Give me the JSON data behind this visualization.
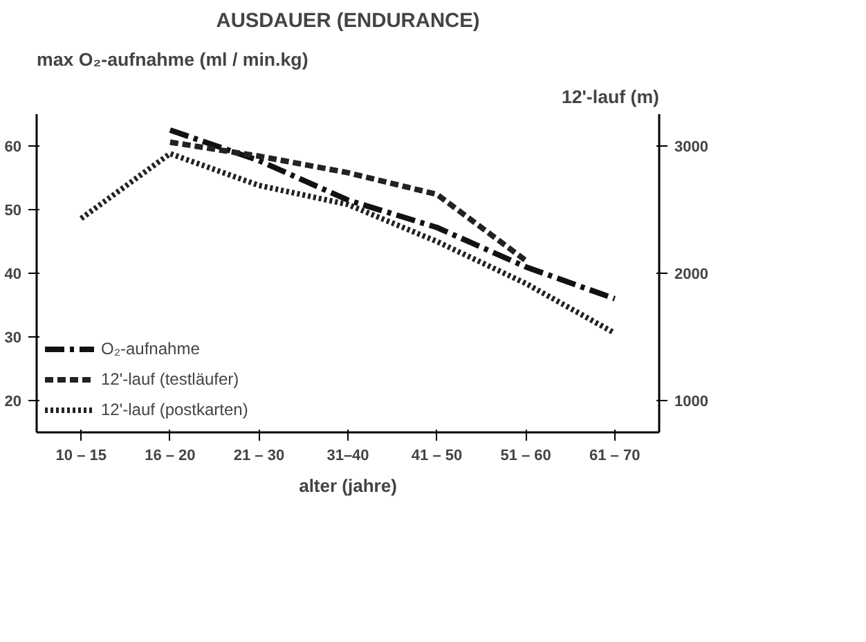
{
  "chart_data": {
    "type": "line",
    "title": "AUSDAUER (ENDURANCE)",
    "xlabel": "alter (jahre)",
    "ylabel": "max O₂-aufnahme (ml / min.kg)",
    "y2label": "12'-lauf (m)",
    "categories": [
      "10 – 15",
      "16 – 20",
      "21 – 30",
      "31–40",
      "41 – 50",
      "51 – 60",
      "61 – 70"
    ],
    "series": [
      {
        "name": "O₂-aufnahme",
        "color": "#111111",
        "line_style": "dashdot",
        "values": [
          null,
          62.5,
          57.7,
          51.5,
          47.2,
          41,
          36
        ]
      },
      {
        "name": "12'-lauf (testläufer)",
        "color": "#222222",
        "line_style": "dashed",
        "axis": "y2",
        "values": [
          null,
          3030,
          2920,
          2790,
          2620,
          2100,
          null
        ]
      },
      {
        "name": "12'-lauf (postkarten)",
        "color": "#222222",
        "line_style": "dotted",
        "axis": "y2",
        "values": [
          2430,
          2940,
          2690,
          2540,
          2250,
          1920,
          1530
        ]
      }
    ],
    "ylim": [
      15,
      65
    ],
    "yticks": [
      20,
      30,
      40,
      50,
      60
    ],
    "y2lim": [
      750,
      3250
    ],
    "y2ticks": [
      1000,
      2000,
      3000
    ],
    "grid": false,
    "legend": "bottom left",
    "marker": "none"
  }
}
